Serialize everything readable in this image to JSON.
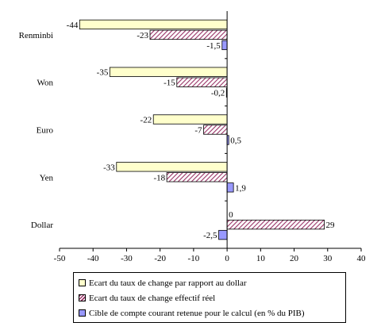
{
  "chart_data": {
    "type": "bar",
    "orientation": "horizontal",
    "categories": [
      "Renminbi",
      "Won",
      "Euro",
      "Yen",
      "Dollar"
    ],
    "series": [
      {
        "name": "Ecart du taux de change par rapport au dollar",
        "values": [
          -44,
          -35,
          -22,
          -33,
          0
        ],
        "labels": [
          "-44",
          "-35",
          "-22",
          "-33",
          "0"
        ],
        "color": "#ffffcc"
      },
      {
        "name": "Ecart du taux de change effectif réel",
        "values": [
          -23,
          -15,
          -7,
          -18,
          29
        ],
        "labels": [
          "-23",
          "-15",
          "-7",
          "-18",
          "29"
        ],
        "color": "#993366"
      },
      {
        "name": "Cible de compte courant retenue pour le calcul (en % du PIB)",
        "values": [
          -1.5,
          -0.2,
          0.5,
          1.9,
          -2.5
        ],
        "labels": [
          "-1,5",
          "-0,2",
          "0,5",
          "1,9",
          "-2,5"
        ],
        "color": "#9999ff"
      }
    ],
    "xlim": [
      -50,
      40
    ],
    "xticks": [
      -50,
      -40,
      -30,
      -20,
      -10,
      0,
      10,
      20,
      30,
      40
    ],
    "grid": false,
    "legend_position": "bottom"
  }
}
